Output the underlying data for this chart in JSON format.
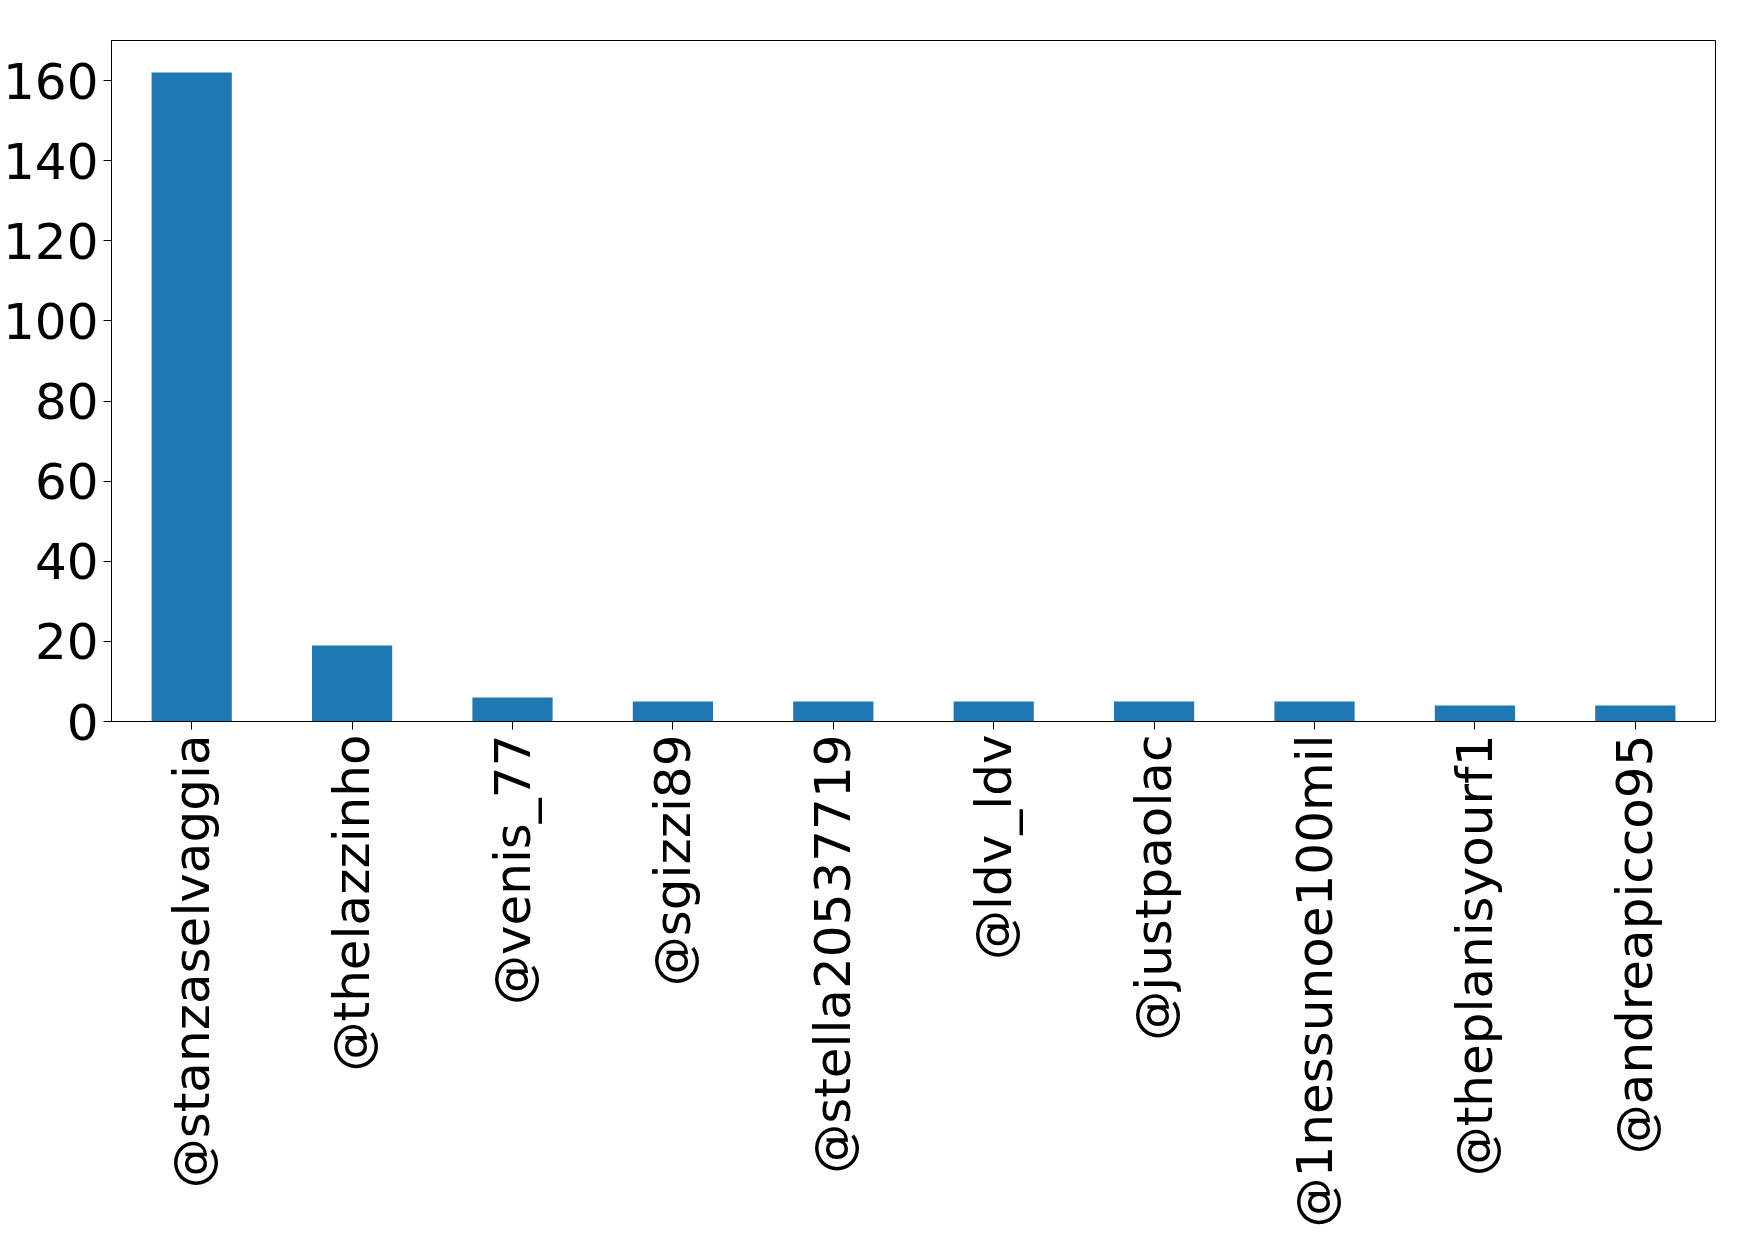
{
  "chart_data": {
    "type": "bar",
    "categories": [
      "@stanzaselvaggia",
      "@thelazzinho",
      "@venis_77",
      "@sgizzi89",
      "@stella20537719",
      "@ldv_ldv",
      "@justpaolac",
      "@1nessunoe100mil",
      "@theplanisyourf1",
      "@andreapicco95"
    ],
    "values": [
      162,
      19,
      6,
      5,
      5,
      5,
      5,
      5,
      4,
      4
    ],
    "color": "#1f77b4",
    "ylim": [
      0,
      170
    ],
    "yticks": [
      0,
      20,
      40,
      60,
      80,
      100,
      120,
      140,
      160
    ],
    "grid": false
  }
}
